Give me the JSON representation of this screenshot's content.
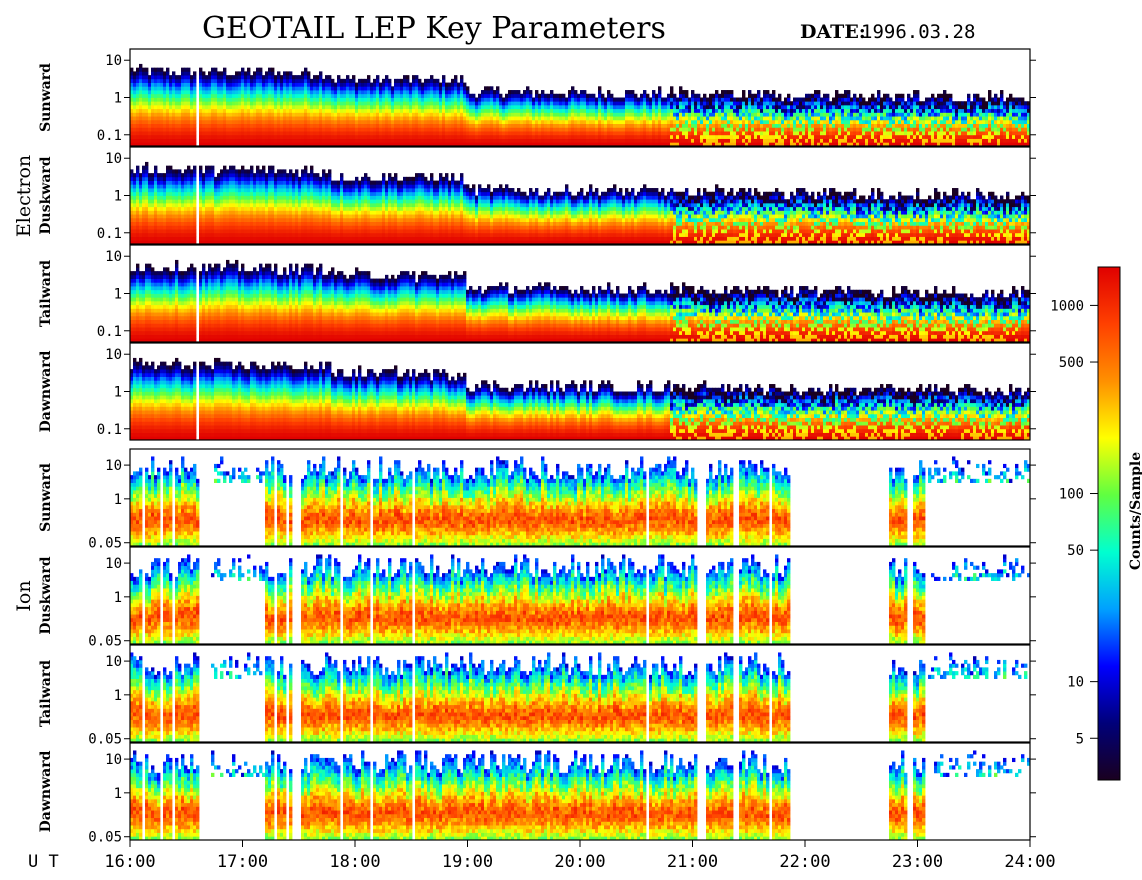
{
  "chart_data": {
    "type": "heatmap",
    "title": "GEOTAIL LEP Key Parameters",
    "date_label": "DATE:",
    "date_value": "1996.03.28",
    "x_axis": {
      "label": "U T",
      "range": [
        "16:00",
        "24:00"
      ],
      "tick_labels": [
        "16:00",
        "17:00",
        "18:00",
        "19:00",
        "20:00",
        "21:00",
        "22:00",
        "23:00",
        "24:00"
      ]
    },
    "colorbar": {
      "label": "Counts/Sample",
      "scale": "log",
      "range": [
        3,
        1600
      ],
      "ticks": [
        5,
        10,
        50,
        100,
        500,
        1000
      ],
      "tick_labels": [
        "5",
        "10",
        "50",
        "100",
        "500",
        "1000"
      ],
      "colormap": [
        "#1a0020",
        "#00007a",
        "#0000ff",
        "#00a0ff",
        "#00ffd0",
        "#60ff40",
        "#ffff00",
        "#ff9000",
        "#ff4000",
        "#e00000"
      ]
    },
    "groups": [
      {
        "name": "Electron",
        "y_scale": "log",
        "y_range": [
          0.05,
          20
        ],
        "y_ticks": [
          0.1,
          1,
          10
        ],
        "y_tick_labels": [
          "0.1",
          "1",
          "10"
        ],
        "panels": [
          "Sunward",
          "Duskward",
          "Tailward",
          "Dawnward"
        ]
      },
      {
        "name": "Ion",
        "y_scale": "log",
        "y_range": [
          0.04,
          30
        ],
        "y_ticks": [
          0.05,
          1,
          10
        ],
        "y_tick_labels": [
          "0.05",
          "1",
          "10"
        ],
        "panels": [
          "Sunward",
          "Duskward",
          "Tailward",
          "Dawnward"
        ]
      }
    ]
  }
}
